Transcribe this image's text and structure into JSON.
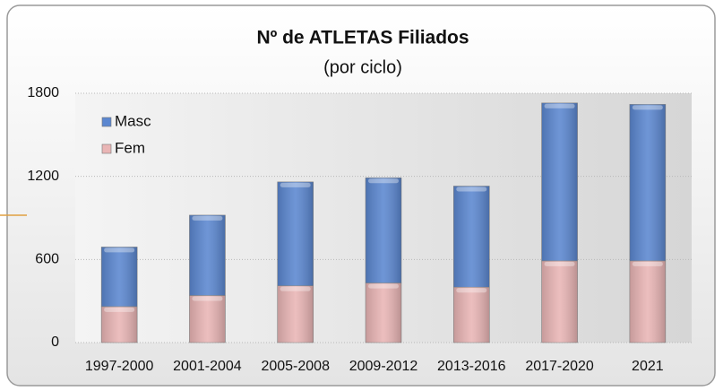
{
  "chart_data": {
    "type": "stacked_bar",
    "title": "Nº de ATLETAS Filiados",
    "subtitle": "(por ciclo)",
    "categories": [
      "1997-2000",
      "2001-2004",
      "2005-2008",
      "2009-2012",
      "2013-2016",
      "2017-2020",
      "2021"
    ],
    "series": [
      {
        "name": "Masc",
        "color": "#5b87d0",
        "values": [
          430,
          580,
          750,
          760,
          730,
          1140,
          1130
        ]
      },
      {
        "name": "Fem",
        "color": "#e9b5b5",
        "values": [
          260,
          340,
          410,
          430,
          400,
          590,
          590
        ]
      }
    ],
    "ylim": [
      0,
      1800
    ],
    "yticks": [
      0,
      600,
      1200,
      1800
    ],
    "grid": true,
    "legend": "upper left"
  }
}
